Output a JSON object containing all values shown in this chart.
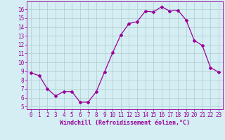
{
  "x": [
    0,
    1,
    2,
    3,
    4,
    5,
    6,
    7,
    8,
    9,
    10,
    11,
    12,
    13,
    14,
    15,
    16,
    17,
    18,
    19,
    20,
    21,
    22,
    23
  ],
  "y": [
    8.8,
    8.5,
    7.0,
    6.2,
    6.7,
    6.7,
    5.5,
    5.5,
    6.7,
    8.9,
    11.1,
    13.1,
    14.4,
    14.6,
    15.8,
    15.7,
    16.3,
    15.8,
    15.9,
    14.8,
    12.5,
    11.9,
    9.4,
    8.9
  ],
  "line_color": "#990099",
  "marker": "D",
  "marker_size": 2,
  "bg_color": "#d4eef4",
  "grid_color": "#b0cccc",
  "xlabel": "Windchill (Refroidissement éolien,°C)",
  "xlabel_color": "#990099",
  "tick_color": "#990099",
  "ylabel_ticks": [
    5,
    6,
    7,
    8,
    9,
    10,
    11,
    12,
    13,
    14,
    15,
    16
  ],
  "ylim": [
    4.7,
    16.9
  ],
  "xlim": [
    -0.5,
    23.5
  ],
  "tick_fontsize": 5.5,
  "xlabel_fontsize": 6.0
}
